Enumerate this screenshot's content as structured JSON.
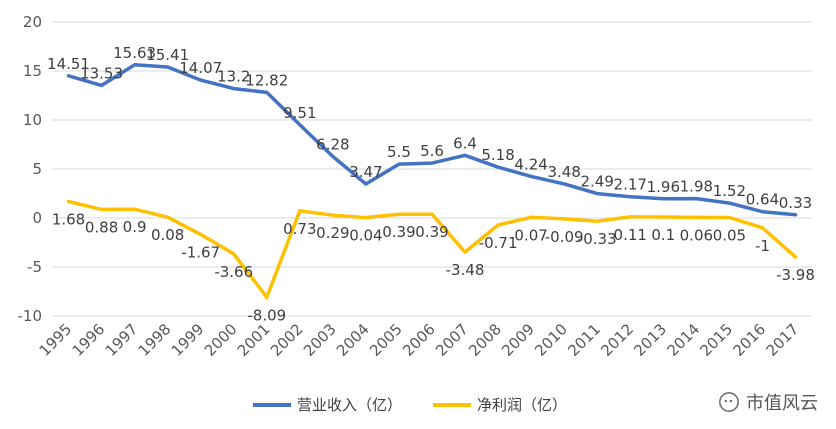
{
  "chart_data": {
    "type": "line",
    "categories": [
      "1995",
      "1996",
      "1997",
      "1998",
      "1999",
      "2000",
      "2001",
      "2002",
      "2003",
      "2004",
      "2005",
      "2006",
      "2007",
      "2008",
      "2009",
      "2010",
      "2011",
      "2012",
      "2013",
      "2014",
      "2015",
      "2016",
      "2017"
    ],
    "series": [
      {
        "name": "营业收入（亿）",
        "color": "#4472C4",
        "values": [
          14.51,
          13.53,
          15.63,
          15.41,
          14.07,
          13.2,
          12.82,
          9.51,
          6.28,
          3.47,
          5.5,
          5.6,
          6.4,
          5.18,
          4.24,
          3.48,
          2.49,
          2.17,
          1.96,
          1.98,
          1.52,
          0.64,
          0.33
        ],
        "labels": [
          "14.51",
          "13.53",
          "15.63",
          "15.41",
          "14.07",
          "13.2",
          "12.82",
          "9.51",
          "6.28",
          "3.47",
          "5.5",
          "5.6",
          "6.4",
          "5.18",
          "4.24",
          "3.48",
          "2.49",
          "2.17",
          "1.96",
          "1.98",
          "1.52",
          "0.64",
          "0.33"
        ]
      },
      {
        "name": "净利润（亿）",
        "color": "#FFC000",
        "values": [
          1.68,
          0.88,
          0.9,
          0.08,
          -1.67,
          -3.66,
          -8.09,
          0.73,
          0.29,
          0.04,
          0.39,
          0.39,
          -3.48,
          -0.71,
          0.07,
          -0.09,
          -0.33,
          0.11,
          0.1,
          0.06,
          0.05,
          -1,
          -3.98
        ],
        "labels": [
          "1.68",
          "0.88",
          "0.9",
          "0.08",
          "-1.67",
          "-3.66",
          "-8.09",
          "0.73",
          "0.29",
          "0.04",
          "0.39",
          "0.39",
          "-3.48",
          "-0.71",
          "0.07",
          "-0.09",
          "-0.33",
          "0.11",
          "0.1",
          "0.06",
          "0.05",
          "-1",
          "-3.98"
        ]
      }
    ],
    "yticks": [
      "20",
      "15",
      "10",
      "5",
      "0",
      "-5",
      "-10"
    ],
    "ylim": [
      -10,
      20
    ],
    "grid": true,
    "legend_position": "bottom"
  },
  "watermark": {
    "text": "市值风云",
    "icon": "wechat-bubble-icon"
  }
}
